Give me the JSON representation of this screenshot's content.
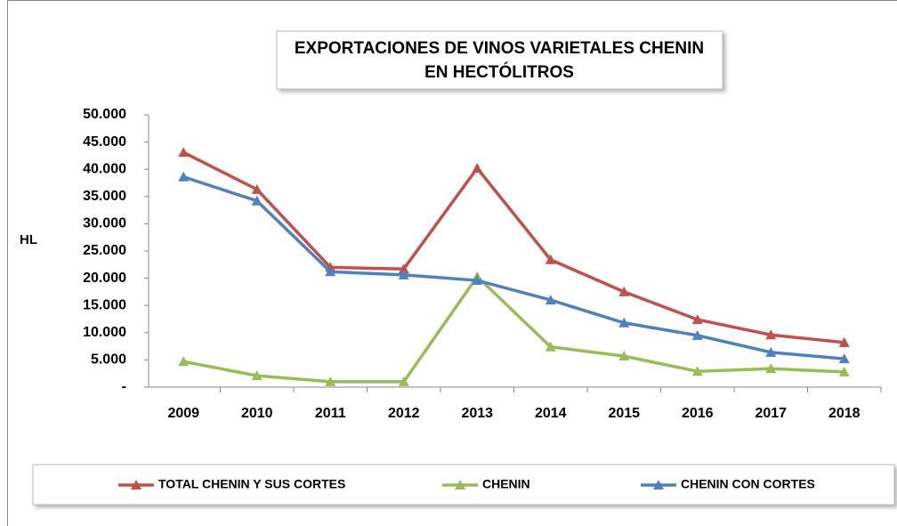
{
  "chart_data": {
    "type": "line",
    "title": [
      "EXPORTACIONES DE VINOS VARIETALES CHENIN",
      "EN HECTÓLITROS"
    ],
    "y_label": "HL",
    "categories": [
      "2009",
      "2010",
      "2011",
      "2012",
      "2013",
      "2014",
      "2015",
      "2016",
      "2017",
      "2018"
    ],
    "series": [
      {
        "name": "TOTAL CHENIN Y SUS CORTES",
        "color": "#c0504d",
        "values": [
          43100,
          36300,
          22000,
          21700,
          40200,
          23400,
          17500,
          12400,
          9600,
          8200
        ]
      },
      {
        "name": "CHENIN",
        "color": "#9bbb59",
        "values": [
          4700,
          2100,
          1000,
          1000,
          20300,
          7400,
          5700,
          2900,
          3400,
          2800
        ]
      },
      {
        "name": "CHENIN CON CORTES",
        "color": "#4f81bd",
        "values": [
          38600,
          34200,
          21200,
          20600,
          19600,
          16000,
          11800,
          9500,
          6400,
          5200
        ]
      }
    ],
    "ylim": [
      0,
      50000
    ],
    "yticks": [
      {
        "value": 0,
        "label": "-"
      },
      {
        "value": 5000,
        "label": "5.000"
      },
      {
        "value": 10000,
        "label": "10.000"
      },
      {
        "value": 15000,
        "label": "15.000"
      },
      {
        "value": 20000,
        "label": "20.000"
      },
      {
        "value": 25000,
        "label": "25.000"
      },
      {
        "value": 30000,
        "label": "30.000"
      },
      {
        "value": 35000,
        "label": "35.000"
      },
      {
        "value": 40000,
        "label": "40.000"
      },
      {
        "value": 45000,
        "label": "45.000"
      },
      {
        "value": 50000,
        "label": "50.000"
      }
    ],
    "legend": "bottom"
  }
}
